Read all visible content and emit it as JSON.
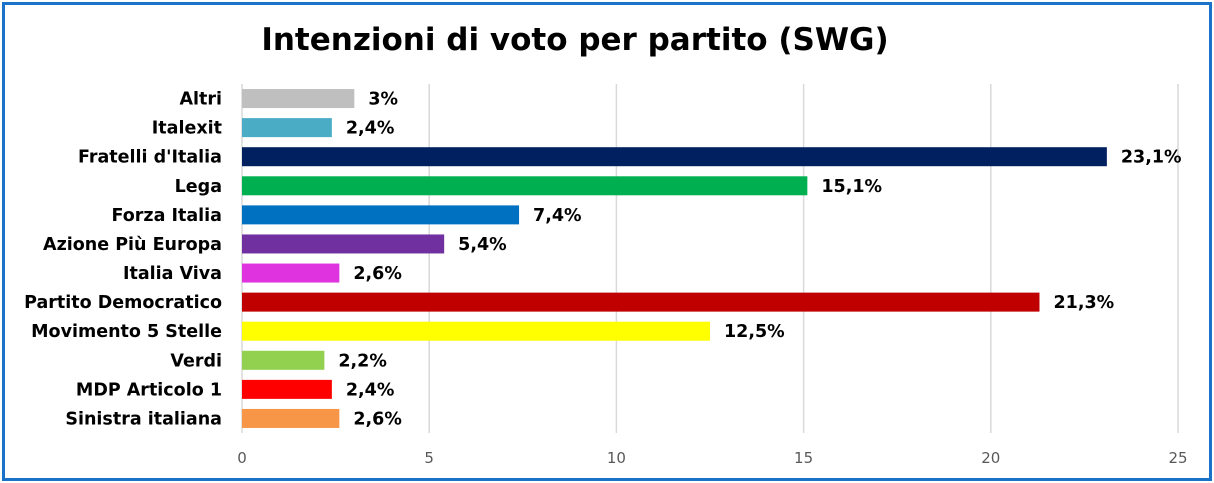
{
  "chart_data": {
    "type": "bar",
    "orientation": "horizontal",
    "title": "Intenzioni di voto per partito (SWG)",
    "xlabel": "",
    "ylabel": "",
    "xlim": [
      0,
      25
    ],
    "x_ticks": [
      "0",
      "5",
      "10",
      "15",
      "20",
      "25"
    ],
    "grid": true,
    "categories": [
      "Altri",
      "Italexit",
      "Fratelli d'Italia",
      "Lega",
      "Forza Italia",
      "Azione Più Europa",
      "Italia Viva",
      "Partito Democratico",
      "Movimento 5 Stelle",
      "Verdi",
      "MDP Articolo 1",
      "Sinistra italiana"
    ],
    "values": [
      3,
      2.4,
      23.1,
      15.1,
      7.4,
      5.4,
      2.6,
      21.3,
      12.5,
      2.2,
      2.4,
      2.6
    ],
    "value_labels": [
      "3%",
      "2,4%",
      "23,1%",
      "15,1%",
      "7,4%",
      "5,4%",
      "2,6%",
      "21,3%",
      "12,5%",
      "2,2%",
      "2,4%",
      "2,6%"
    ],
    "colors": [
      "#bfbfbf",
      "#4bacc6",
      "#002060",
      "#00b050",
      "#0070c0",
      "#7030a0",
      "#e033e0",
      "#c00000",
      "#ffff00",
      "#92d050",
      "#ff0000",
      "#f79646"
    ]
  }
}
